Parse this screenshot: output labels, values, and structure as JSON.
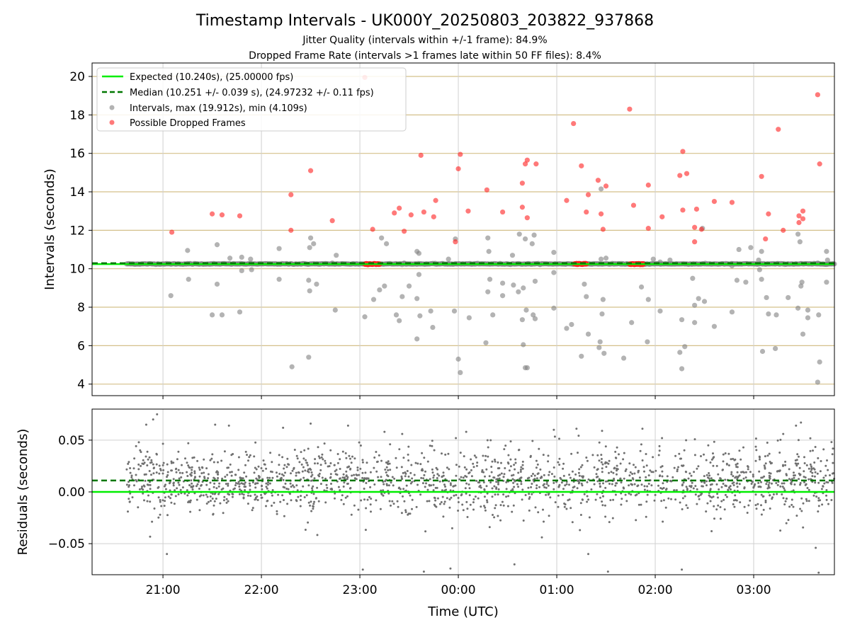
{
  "chart_data": [
    {
      "type": "scatter",
      "title": "Timestamp Intervals - UK000Y_20250803_203822_937868",
      "subtitle_lines": [
        "Jitter Quality (intervals within +/-1 frame): 84.9%",
        "Dropped Frame Rate (intervals >1 frames late within 50 FF files): 8.4%"
      ],
      "xlabel": "",
      "ylabel": "Intervals (seconds)",
      "ylim": [
        3.4,
        20.7
      ],
      "yticks": [
        4,
        6,
        8,
        10,
        12,
        14,
        16,
        18,
        20
      ],
      "ytick_labels": [
        "4",
        "6",
        "8",
        "10",
        "12",
        "14",
        "16",
        "18",
        "20"
      ],
      "x_axis_hours": [
        20.28,
        27.82
      ],
      "x_tick_hours": [
        21,
        22,
        23,
        24,
        25,
        26,
        27
      ],
      "grid": "on",
      "legend_position": "top-left",
      "legend": [
        "Expected (10.240s), (25.00000 fps)",
        "Median (10.251 +/- 0.039 s), (24.97232 +/- 0.11 fps)",
        "Intervals, max (19.912s), min (4.109s)",
        "Possible Dropped Frames"
      ],
      "reference_lines": {
        "expected": 10.24,
        "median": 10.251
      },
      "colors": {
        "expected": "#00ee00",
        "median": "#007700",
        "intervals": "#808080",
        "dropped": "#ff2020",
        "hgrid": "#d4c08a"
      },
      "series": [
        {
          "name": "Intervals, max (19.912s), min (4.109s)",
          "points": [
            [
              21.08,
              8.6
            ],
            [
              21.25,
              10.95
            ],
            [
              21.26,
              9.45
            ],
            [
              21.5,
              7.6
            ],
            [
              21.55,
              9.2
            ],
            [
              21.55,
              11.25
            ],
            [
              21.6,
              7.6
            ],
            [
              21.68,
              10.55
            ],
            [
              21.78,
              7.75
            ],
            [
              21.8,
              9.9
            ],
            [
              21.8,
              10.6
            ],
            [
              21.89,
              10.5
            ],
            [
              21.9,
              9.95
            ],
            [
              22.18,
              11.05
            ],
            [
              22.18,
              9.45
            ],
            [
              22.31,
              4.9
            ],
            [
              22.48,
              5.4
            ],
            [
              22.48,
              9.4
            ],
            [
              22.49,
              8.85
            ],
            [
              22.49,
              11.1
            ],
            [
              22.5,
              11.6
            ],
            [
              22.53,
              11.3
            ],
            [
              22.56,
              9.2
            ],
            [
              22.72,
              10.3
            ],
            [
              22.75,
              7.85
            ],
            [
              22.76,
              10.7
            ],
            [
              23.05,
              7.5
            ],
            [
              23.14,
              8.4
            ],
            [
              23.2,
              8.9
            ],
            [
              23.22,
              11.6
            ],
            [
              23.25,
              9.1
            ],
            [
              23.27,
              11.3
            ],
            [
              23.37,
              7.6
            ],
            [
              23.4,
              7.3
            ],
            [
              23.43,
              8.55
            ],
            [
              23.45,
              10.3
            ],
            [
              23.5,
              9.1
            ],
            [
              23.58,
              6.35
            ],
            [
              23.58,
              8.45
            ],
            [
              23.58,
              10.9
            ],
            [
              23.6,
              10.8
            ],
            [
              23.6,
              9.7
            ],
            [
              23.61,
              7.55
            ],
            [
              23.72,
              7.8
            ],
            [
              23.74,
              6.95
            ],
            [
              23.9,
              10.5
            ],
            [
              23.96,
              7.8
            ],
            [
              23.97,
              11.55
            ],
            [
              24.0,
              5.3
            ],
            [
              24.02,
              4.6
            ],
            [
              24.11,
              7.45
            ],
            [
              24.28,
              6.15
            ],
            [
              24.3,
              8.8
            ],
            [
              24.3,
              11.6
            ],
            [
              24.31,
              10.9
            ],
            [
              24.32,
              9.45
            ],
            [
              24.35,
              7.6
            ],
            [
              24.45,
              8.6
            ],
            [
              24.45,
              9.25
            ],
            [
              24.55,
              10.7
            ],
            [
              24.56,
              9.15
            ],
            [
              24.61,
              8.8
            ],
            [
              24.62,
              11.8
            ],
            [
              24.65,
              7.35
            ],
            [
              24.66,
              6.05
            ],
            [
              24.66,
              9.0
            ],
            [
              24.68,
              11.55
            ],
            [
              24.68,
              4.85
            ],
            [
              24.69,
              7.85
            ],
            [
              24.7,
              4.85
            ],
            [
              24.71,
              10.25
            ],
            [
              24.75,
              11.3
            ],
            [
              24.76,
              7.6
            ],
            [
              24.77,
              11.75
            ],
            [
              24.78,
              7.4
            ],
            [
              24.78,
              9.35
            ],
            [
              24.97,
              7.95
            ],
            [
              24.97,
              9.8
            ],
            [
              24.97,
              10.85
            ],
            [
              25.1,
              6.9
            ],
            [
              25.15,
              7.1
            ],
            [
              25.25,
              5.45
            ],
            [
              25.28,
              9.2
            ],
            [
              25.3,
              8.55
            ],
            [
              25.32,
              6.6
            ],
            [
              25.43,
              5.9
            ],
            [
              25.44,
              6.2
            ],
            [
              25.45,
              10.5
            ],
            [
              25.46,
              7.65
            ],
            [
              25.47,
              8.4
            ],
            [
              25.48,
              5.6
            ],
            [
              25.5,
              10.55
            ],
            [
              25.45,
              14.15
            ],
            [
              25.68,
              5.35
            ],
            [
              25.71,
              10.25
            ],
            [
              25.76,
              7.2
            ],
            [
              25.86,
              9.05
            ],
            [
              25.92,
              6.2
            ],
            [
              25.93,
              8.4
            ],
            [
              25.98,
              10.5
            ],
            [
              26.05,
              7.8
            ],
            [
              26.05,
              10.35
            ],
            [
              26.15,
              10.45
            ],
            [
              26.25,
              5.65
            ],
            [
              26.27,
              4.8
            ],
            [
              26.27,
              7.35
            ],
            [
              26.3,
              5.95
            ],
            [
              26.38,
              9.5
            ],
            [
              26.4,
              8.1
            ],
            [
              26.4,
              7.2
            ],
            [
              26.44,
              8.45
            ],
            [
              26.48,
              12.1
            ],
            [
              26.5,
              8.3
            ],
            [
              26.6,
              7.0
            ],
            [
              26.78,
              10.15
            ],
            [
              26.78,
              7.75
            ],
            [
              26.83,
              9.4
            ],
            [
              26.85,
              11.0
            ],
            [
              26.92,
              9.3
            ],
            [
              26.97,
              11.1
            ],
            [
              27.05,
              10.45
            ],
            [
              27.06,
              9.95
            ],
            [
              27.08,
              9.45
            ],
            [
              27.08,
              10.9
            ],
            [
              27.09,
              5.7
            ],
            [
              27.13,
              8.5
            ],
            [
              27.15,
              7.65
            ],
            [
              27.23,
              7.6
            ],
            [
              27.22,
              5.85
            ],
            [
              27.35,
              8.5
            ],
            [
              27.45,
              7.95
            ],
            [
              27.45,
              11.8
            ],
            [
              27.47,
              11.4
            ],
            [
              27.48,
              9.1
            ],
            [
              27.5,
              6.6
            ],
            [
              27.49,
              9.3
            ],
            [
              27.55,
              7.85
            ],
            [
              27.55,
              7.45
            ],
            [
              27.66,
              7.6
            ],
            [
              27.65,
              10.3
            ],
            [
              27.65,
              4.1
            ],
            [
              27.67,
              5.15
            ],
            [
              27.74,
              9.3
            ],
            [
              27.75,
              10.45
            ],
            [
              27.74,
              10.9
            ]
          ]
        },
        {
          "name": "Possible Dropped Frames",
          "points": [
            [
              21.09,
              11.9
            ],
            [
              21.5,
              12.85
            ],
            [
              21.6,
              12.8
            ],
            [
              21.78,
              12.75
            ],
            [
              22.3,
              13.85
            ],
            [
              22.3,
              12.0
            ],
            [
              22.5,
              15.1
            ],
            [
              22.72,
              12.5
            ],
            [
              23.05,
              19.95
            ],
            [
              23.13,
              12.05
            ],
            [
              23.35,
              12.9
            ],
            [
              23.4,
              13.15
            ],
            [
              23.45,
              11.95
            ],
            [
              23.52,
              12.8
            ],
            [
              23.62,
              15.9
            ],
            [
              23.65,
              12.95
            ],
            [
              23.75,
              12.7
            ],
            [
              23.77,
              13.55
            ],
            [
              23.97,
              11.4
            ],
            [
              24.0,
              15.2
            ],
            [
              24.02,
              15.95
            ],
            [
              24.1,
              13.0
            ],
            [
              24.29,
              14.1
            ],
            [
              24.45,
              12.95
            ],
            [
              24.65,
              13.2
            ],
            [
              24.65,
              14.45
            ],
            [
              24.68,
              15.45
            ],
            [
              24.7,
              15.65
            ],
            [
              24.7,
              12.65
            ],
            [
              24.79,
              15.45
            ],
            [
              25.1,
              13.55
            ],
            [
              25.17,
              17.55
            ],
            [
              25.25,
              15.35
            ],
            [
              25.3,
              12.95
            ],
            [
              25.32,
              13.85
            ],
            [
              25.42,
              14.6
            ],
            [
              25.47,
              12.05
            ],
            [
              25.5,
              14.3
            ],
            [
              25.45,
              12.85
            ],
            [
              25.74,
              18.3
            ],
            [
              25.78,
              13.3
            ],
            [
              25.93,
              14.35
            ],
            [
              25.93,
              12.1
            ],
            [
              26.07,
              12.7
            ],
            [
              26.25,
              14.85
            ],
            [
              26.28,
              16.1
            ],
            [
              26.32,
              14.95
            ],
            [
              26.28,
              13.05
            ],
            [
              26.4,
              12.15
            ],
            [
              26.4,
              11.4
            ],
            [
              26.42,
              13.1
            ],
            [
              26.47,
              12.05
            ],
            [
              26.6,
              13.5
            ],
            [
              26.78,
              13.45
            ],
            [
              27.08,
              14.8
            ],
            [
              27.15,
              12.85
            ],
            [
              27.12,
              11.55
            ],
            [
              27.25,
              17.25
            ],
            [
              27.3,
              12.0
            ],
            [
              27.46,
              12.75
            ],
            [
              27.46,
              12.4
            ],
            [
              27.5,
              12.6
            ],
            [
              27.5,
              13.0
            ],
            [
              27.65,
              19.05
            ],
            [
              27.67,
              15.45
            ]
          ],
          "clusters": [
            {
              "x_start": 23.05,
              "x_end": 23.2,
              "y": 10.24
            },
            {
              "x_start": 25.18,
              "x_end": 25.3,
              "y": 10.25
            },
            {
              "x_start": 25.74,
              "x_end": 25.88,
              "y": 10.24
            }
          ]
        }
      ]
    },
    {
      "type": "scatter",
      "xlabel": "Time (UTC)",
      "ylabel": "Residuals (seconds)",
      "ylim": [
        -0.08,
        0.08
      ],
      "yticks": [
        0.05,
        0.0,
        -0.05
      ],
      "ytick_labels": [
        "0.05",
        "0.00",
        "−0.05"
      ],
      "x_axis_hours": [
        20.28,
        27.82
      ],
      "x_tick_hours": [
        21,
        22,
        23,
        24,
        25,
        26,
        27
      ],
      "x_tick_labels": [
        "21:00",
        "22:00",
        "23:00",
        "00:00",
        "01:00",
        "02:00",
        "03:00"
      ],
      "grid": "on",
      "reference_lines": {
        "expected": 0.0,
        "median": 0.011
      },
      "residual_spread": {
        "x_start": 20.63,
        "x_end": 27.82,
        "center": 0.01,
        "sd": 0.016,
        "n": 1800
      },
      "outliers": [
        [
          20.94,
          0.075
        ],
        [
          20.9,
          0.07
        ],
        [
          20.83,
          0.065
        ],
        [
          21.04,
          -0.06
        ],
        [
          21.53,
          0.065
        ],
        [
          21.67,
          0.064
        ],
        [
          22.22,
          0.062
        ],
        [
          22.5,
          0.066
        ],
        [
          22.88,
          0.064
        ],
        [
          23.03,
          -0.075
        ],
        [
          23.25,
          0.058
        ],
        [
          23.43,
          0.056
        ],
        [
          23.65,
          -0.077
        ],
        [
          23.92,
          -0.074
        ],
        [
          24.08,
          0.058
        ],
        [
          24.57,
          -0.07
        ],
        [
          24.97,
          0.06
        ],
        [
          25.2,
          0.061
        ],
        [
          25.32,
          -0.06
        ],
        [
          25.46,
          0.059
        ],
        [
          25.52,
          -0.077
        ],
        [
          25.87,
          0.061
        ],
        [
          26.27,
          -0.075
        ],
        [
          27.3,
          0.056
        ],
        [
          27.43,
          0.064
        ],
        [
          27.48,
          0.067
        ],
        [
          27.63,
          -0.054
        ],
        [
          27.66,
          -0.078
        ]
      ],
      "colors": {
        "expected": "#00ee00",
        "median": "#007700",
        "points": "#707070"
      }
    }
  ]
}
